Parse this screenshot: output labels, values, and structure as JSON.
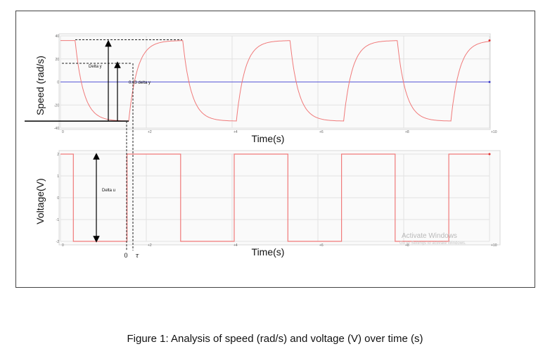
{
  "figure": {
    "caption": "Figure 1: Analysis of speed (rad/s) and voltage (V) over time (s)"
  },
  "watermark": {
    "title": "Activate Windows",
    "subtitle": "Go to Settings to activate Windows."
  },
  "chart_data": [
    {
      "type": "line",
      "ylabel": "Speed (rad/s)",
      "xlabel": "Time(s)",
      "xlim": [
        0,
        10
      ],
      "ylim": [
        -40,
        40
      ],
      "x_ticks": [
        "0",
        "+2",
        "+4",
        "+6",
        "+8",
        "+10"
      ],
      "y_ticks": [
        "40",
        "20",
        "0",
        "-20",
        "-40"
      ],
      "grid": true,
      "series": [
        {
          "name": "",
          "color": "#f07a7a",
          "description_values": {
            "high": 36,
            "low": -34,
            "tau": 0.2,
            "first_edge": 0.35,
            "half_period": 1.25
          }
        },
        {
          "name": "",
          "color": "#5a5ad6",
          "constant": 0
        }
      ],
      "annotations": [
        {
          "text": "Delta y"
        },
        {
          "text": "0.63 delta y"
        }
      ]
    },
    {
      "type": "line",
      "ylabel": "Voltage(V)",
      "xlabel": "Time(s)",
      "xlim": [
        0,
        10
      ],
      "ylim": [
        -2,
        2
      ],
      "x_ticks": [
        "0",
        "+2",
        "+4",
        "+6",
        "+8",
        "+10"
      ],
      "y_ticks": [
        "2",
        "1",
        "0",
        "-1",
        "-2"
      ],
      "grid": true,
      "series": [
        {
          "name": "",
          "color": "#f07a7a",
          "points": [
            [
              0,
              2
            ],
            [
              0.3,
              2
            ],
            [
              0.3,
              -2
            ],
            [
              1.55,
              -2
            ],
            [
              1.55,
              2
            ],
            [
              2.8,
              2
            ],
            [
              2.8,
              -2
            ],
            [
              4.05,
              -2
            ],
            [
              4.05,
              2
            ],
            [
              5.3,
              2
            ],
            [
              5.3,
              -2
            ],
            [
              6.55,
              -2
            ],
            [
              6.55,
              2
            ],
            [
              7.8,
              2
            ],
            [
              7.8,
              -2
            ],
            [
              9.05,
              -2
            ],
            [
              9.05,
              2
            ],
            [
              10,
              2
            ]
          ]
        }
      ],
      "annotations": [
        {
          "text": "Delta u"
        },
        {
          "text": "0"
        },
        {
          "text": "τ"
        }
      ]
    }
  ]
}
